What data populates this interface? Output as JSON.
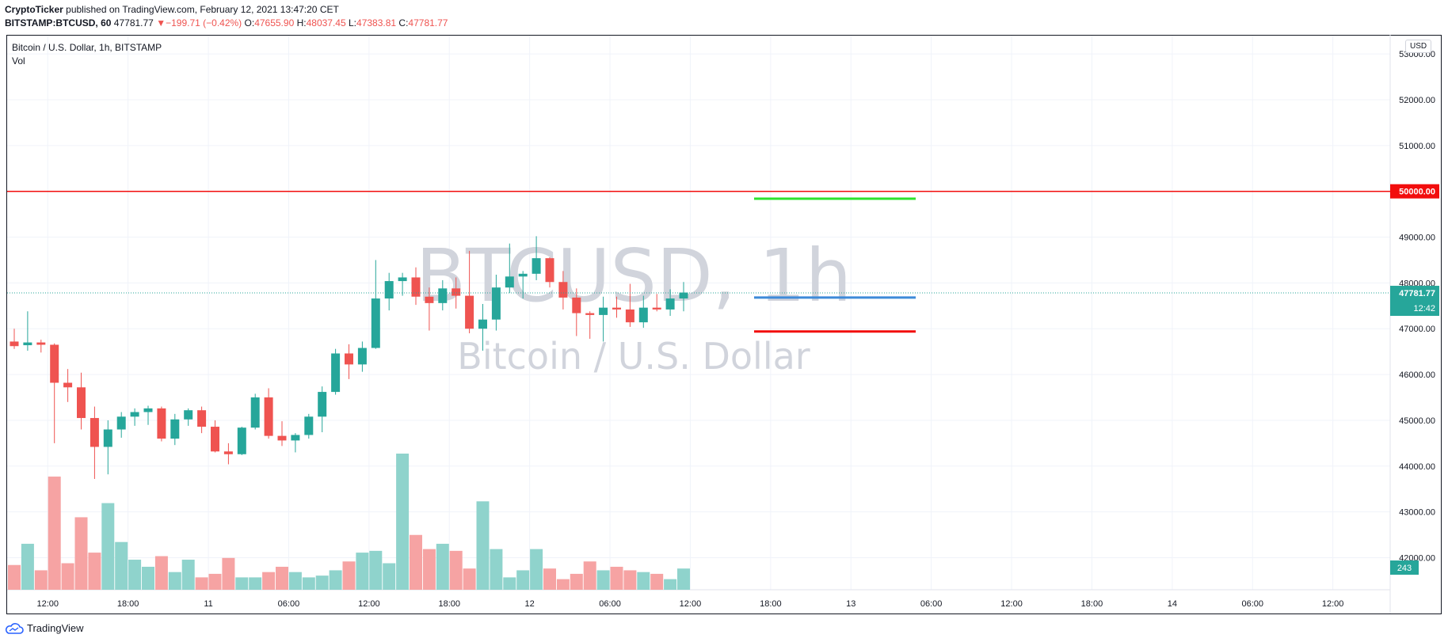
{
  "header": {
    "publisher": "CryptoTicker",
    "published_text": "published on TradingView.com, February 12, 2021 13:47:20 CET",
    "symbol": "BITSTAMP:BTCUSD, 60",
    "last": "47781.77",
    "arrow": "▼",
    "change": "−199.71 (−0.42%)",
    "o_label": "O:",
    "o_value": "47655.90",
    "h_label": "H:",
    "h_value": "48037.45",
    "l_label": "L:",
    "l_value": "47383.81",
    "c_label": "C:",
    "c_value": "47781.77"
  },
  "legend": {
    "title": "Bitcoin / U.S. Dollar, 1h, BITSTAMP",
    "vol": "Vol"
  },
  "currency_button": "USD",
  "watermark": {
    "symbol": "BTCUSD, 1h",
    "name": "Bitcoin / U.S. Dollar"
  },
  "footer": {
    "brand": "TradingView"
  },
  "colors": {
    "up": "#26a69a",
    "down": "#ef5350",
    "up_vol": "#8fd3cc",
    "down_vol": "#f6a3a3",
    "line_red": "#f20d0d",
    "line_green": "#2ee22e",
    "line_blue": "#3d8bd9"
  },
  "chart_data": {
    "type": "candlestick",
    "interval": "1h",
    "y_ticks": [
      "53000.00",
      "52000.00",
      "51000.00",
      "50000.00",
      "49000.00",
      "48000.00",
      "47000.00",
      "46000.00",
      "45000.00",
      "44000.00",
      "43000.00",
      "42000.00"
    ],
    "ylim": [
      41300,
      53400
    ],
    "x_ticks": [
      {
        "label": "12:00",
        "index": 2.5
      },
      {
        "label": "18:00",
        "index": 8.5
      },
      {
        "label": "11",
        "index": 14.5
      },
      {
        "label": "06:00",
        "index": 20.5
      },
      {
        "label": "12:00",
        "index": 26.5
      },
      {
        "label": "18:00",
        "index": 32.5
      },
      {
        "label": "12",
        "index": 38.5
      },
      {
        "label": "06:00",
        "index": 44.5
      },
      {
        "label": "12:00",
        "index": 50.5
      },
      {
        "label": "18:00",
        "index": 56.5
      },
      {
        "label": "13",
        "index": 62.5
      },
      {
        "label": "06:00",
        "index": 68.5
      },
      {
        "label": "12:00",
        "index": 74.5
      },
      {
        "label": "18:00",
        "index": 80.5
      },
      {
        "label": "14",
        "index": 86.5
      },
      {
        "label": "06:00",
        "index": 92.5
      },
      {
        "label": "12:00",
        "index": 98.5
      }
    ],
    "ohlc": [
      [
        46720,
        47000,
        46560,
        46620
      ],
      [
        46640,
        47380,
        46520,
        46700
      ],
      [
        46700,
        46760,
        46480,
        46650
      ],
      [
        46650,
        46680,
        44500,
        45820
      ],
      [
        45820,
        46120,
        45400,
        45720
      ],
      [
        45720,
        46040,
        44800,
        45050
      ],
      [
        45050,
        45300,
        43720,
        44420
      ],
      [
        44420,
        45000,
        43820,
        44800
      ],
      [
        44800,
        45180,
        44620,
        45080
      ],
      [
        45080,
        45260,
        44880,
        45180
      ],
      [
        45180,
        45320,
        44900,
        45260
      ],
      [
        45260,
        45300,
        44540,
        44600
      ],
      [
        44600,
        45140,
        44460,
        45020
      ],
      [
        45020,
        45260,
        44880,
        45220
      ],
      [
        45220,
        45300,
        44720,
        44860
      ],
      [
        44860,
        45000,
        44300,
        44320
      ],
      [
        44320,
        44500,
        44040,
        44260
      ],
      [
        44260,
        44860,
        44240,
        44840
      ],
      [
        44840,
        45580,
        44800,
        45500
      ],
      [
        45500,
        45700,
        44600,
        44660
      ],
      [
        44660,
        44980,
        44440,
        44560
      ],
      [
        44560,
        44720,
        44300,
        44680
      ],
      [
        44680,
        45140,
        44600,
        45080
      ],
      [
        45080,
        45740,
        44740,
        45620
      ],
      [
        45620,
        46560,
        45560,
        46460
      ],
      [
        46460,
        46660,
        45900,
        46220
      ],
      [
        46220,
        46720,
        46060,
        46580
      ],
      [
        46580,
        48500,
        46560,
        47660
      ],
      [
        47660,
        48220,
        47400,
        48040
      ],
      [
        48040,
        48220,
        47720,
        48120
      ],
      [
        48120,
        48340,
        47520,
        47700
      ],
      [
        47700,
        47900,
        46960,
        47560
      ],
      [
        47560,
        48060,
        47400,
        47880
      ],
      [
        47880,
        48120,
        47440,
        47720
      ],
      [
        47720,
        48700,
        46900,
        47000
      ],
      [
        47000,
        47540,
        46520,
        47200
      ],
      [
        47200,
        48180,
        46960,
        47900
      ],
      [
        47900,
        48860,
        47780,
        48140
      ],
      [
        48140,
        48260,
        47660,
        48200
      ],
      [
        48200,
        49020,
        48060,
        48540
      ],
      [
        48540,
        48560,
        47900,
        48020
      ],
      [
        48020,
        48260,
        47420,
        47680
      ],
      [
        47680,
        47880,
        46840,
        47340
      ],
      [
        47340,
        47380,
        46780,
        47300
      ],
      [
        47300,
        47700,
        46720,
        47460
      ],
      [
        47460,
        47700,
        47240,
        47420
      ],
      [
        47420,
        47980,
        47040,
        47140
      ],
      [
        47140,
        47720,
        47020,
        47460
      ],
      [
        47460,
        47760,
        47380,
        47420
      ],
      [
        47420,
        47860,
        47280,
        47660
      ],
      [
        47660,
        48020,
        47380,
        47790
      ]
    ],
    "volume": [
      14,
      26,
      11,
      64,
      15,
      41,
      21,
      49,
      27,
      17,
      13,
      19,
      10,
      17,
      7,
      9,
      18,
      7,
      7,
      10,
      13,
      10,
      7,
      8,
      11,
      16,
      21,
      22,
      15,
      77,
      31,
      23,
      26,
      22,
      12,
      50,
      23,
      7,
      11,
      23,
      12,
      6,
      9,
      16,
      11,
      13,
      11,
      10,
      9,
      6,
      12
    ]
  },
  "levels": [
    {
      "price": "50000.00",
      "value": 50000,
      "color": "#f20d0d"
    },
    {
      "price": "47781.77",
      "value": 47781.77,
      "color": "#26a69a",
      "countdown": "12:42"
    },
    {
      "value": 49840,
      "color": "#2ee22e"
    },
    {
      "value": 47680,
      "color": "#3d8bd9"
    },
    {
      "value": 46940,
      "color": "#f20d0d"
    }
  ],
  "volume_label": "243"
}
